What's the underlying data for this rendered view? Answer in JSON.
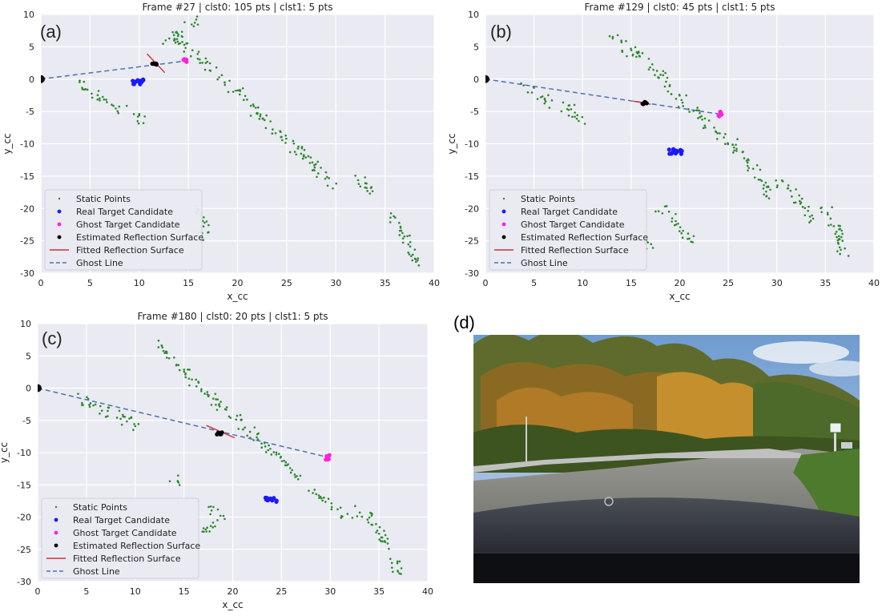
{
  "chart_data": [
    {
      "panel": "(a)",
      "type": "scatter",
      "title": "Frame #27 | clst0: 105 pts | clst1: 5 pts",
      "xlabel": "x_cc",
      "ylabel": "y_cc",
      "xlim": [
        0,
        40
      ],
      "ylim": [
        -30,
        10
      ],
      "xticks": [
        0,
        5,
        10,
        15,
        20,
        25,
        30,
        35,
        40
      ],
      "yticks": [
        10,
        5,
        0,
        -5,
        -10,
        -15,
        -20,
        -25,
        -30
      ],
      "grid": true,
      "legend_position": "lower-left",
      "legend": [
        "Static Points",
        "Real Target Candidate",
        "Ghost Target Candidate",
        "Estimated Reflection Surface",
        "Fitted Reflection Surface",
        "Ghost Line"
      ],
      "static_point_tracks": [
        [
          [
            4,
            -0.8
          ],
          [
            6,
            -3
          ],
          [
            9,
            -5
          ],
          [
            10.5,
            -6.5
          ]
        ],
        [
          [
            13,
            7
          ],
          [
            16.5,
            2.5
          ],
          [
            20,
            -2
          ],
          [
            23,
            -7
          ],
          [
            27,
            -12
          ],
          [
            30,
            -17
          ]
        ],
        [
          [
            32,
            -15
          ],
          [
            34,
            -18
          ]
        ],
        [
          [
            35.5,
            -21
          ],
          [
            37,
            -25
          ],
          [
            38,
            -28.5
          ]
        ],
        [
          [
            15.5,
            -20
          ],
          [
            17,
            -23
          ],
          [
            16,
            -25
          ]
        ],
        [
          [
            12.5,
            6
          ],
          [
            14.5,
            7
          ]
        ],
        [
          [
            15,
            8
          ],
          [
            16,
            9.5
          ]
        ]
      ],
      "real_target": [
        10,
        -0.4
      ],
      "ghost_target": [
        14.7,
        2.8
      ],
      "estimated_surface": [
        11.6,
        2.3
      ],
      "fitted_surface": [
        [
          10.8,
          3.9
        ],
        [
          12.6,
          1.0
        ]
      ],
      "ghost_line": [
        [
          0,
          0
        ],
        [
          14.7,
          2.8
        ]
      ],
      "sensor_origin": [
        0,
        0
      ]
    },
    {
      "panel": "(b)",
      "type": "scatter",
      "title": "Frame #129 | clst0: 45 pts | clst1: 5 pts",
      "xlabel": "x_cc",
      "ylabel": "y_cc",
      "xlim": [
        0,
        40
      ],
      "ylim": [
        -30,
        10
      ],
      "xticks": [
        0,
        5,
        10,
        15,
        20,
        25,
        30,
        35,
        40
      ],
      "yticks": [
        10,
        5,
        0,
        -5,
        -10,
        -15,
        -20,
        -25,
        -30
      ],
      "grid": true,
      "legend_position": "lower-left",
      "legend": [
        "Static Points",
        "Real Target Candidate",
        "Ghost Target Candidate",
        "Estimated Reflection Surface",
        "Fitted Reflection Surface",
        "Ghost Line"
      ],
      "static_point_tracks": [
        [
          [
            4,
            -1
          ],
          [
            6,
            -3
          ],
          [
            8.5,
            -4.5
          ],
          [
            10,
            -6.5
          ]
        ],
        [
          [
            13,
            6.5
          ],
          [
            17,
            2
          ],
          [
            20,
            -3
          ],
          [
            23,
            -7
          ],
          [
            27,
            -12
          ],
          [
            29,
            -18
          ]
        ],
        [
          [
            30,
            -16
          ],
          [
            32,
            -18
          ],
          [
            33.5,
            -22
          ]
        ],
        [
          [
            35,
            -20
          ],
          [
            36.5,
            -24
          ],
          [
            37,
            -28
          ]
        ],
        [
          [
            18,
            -20
          ],
          [
            20,
            -22
          ],
          [
            21,
            -25
          ]
        ],
        [
          [
            16,
            -24
          ],
          [
            17,
            -26
          ]
        ]
      ],
      "real_target": [
        19.6,
        -11.2
      ],
      "ghost_target": [
        24.1,
        -5.4
      ],
      "estimated_surface": [
        16.3,
        -3.7
      ],
      "fitted_surface": [
        [
          15.2,
          -3.4
        ],
        [
          17.0,
          -3.9
        ]
      ],
      "ghost_line": [
        [
          0,
          0
        ],
        [
          24.1,
          -5.4
        ]
      ],
      "sensor_origin": [
        0,
        0
      ]
    },
    {
      "panel": "(c)",
      "type": "scatter",
      "title": "Frame #180 | clst0: 20 pts | clst1: 5 pts",
      "xlabel": "x_cc",
      "ylabel": "y_cc",
      "xlim": [
        0,
        40
      ],
      "ylim": [
        -30,
        10
      ],
      "xticks": [
        0,
        5,
        10,
        15,
        20,
        25,
        30,
        35,
        40
      ],
      "yticks": [
        10,
        5,
        0,
        -5,
        -10,
        -15,
        -20,
        -25,
        -30
      ],
      "grid": true,
      "legend_position": "lower-left",
      "legend": [
        "Static Points",
        "Real Target Candidate",
        "Ghost Target Candidate",
        "Estimated Reflection Surface",
        "Fitted Reflection Surface",
        "Ghost Line"
      ],
      "static_point_tracks": [
        [
          [
            4,
            -1
          ],
          [
            6,
            -3
          ],
          [
            8.5,
            -4.5
          ],
          [
            10.5,
            -6.5
          ]
        ],
        [
          [
            12.5,
            7
          ],
          [
            16,
            1
          ],
          [
            19,
            -3
          ],
          [
            22,
            -7
          ],
          [
            25,
            -11
          ],
          [
            27,
            -14
          ]
        ],
        [
          [
            28,
            -16
          ],
          [
            30,
            -18
          ],
          [
            32,
            -20
          ]
        ],
        [
          [
            33,
            -19
          ],
          [
            35,
            -22
          ],
          [
            36.5,
            -26
          ],
          [
            37,
            -29
          ]
        ],
        [
          [
            17.5,
            -18
          ],
          [
            19,
            -20
          ],
          [
            17,
            -22
          ]
        ],
        [
          [
            14,
            -14
          ],
          [
            15,
            -15
          ]
        ]
      ],
      "real_target": [
        23.8,
        -17.3
      ],
      "ghost_target": [
        29.7,
        -10.7
      ],
      "estimated_surface": [
        18.6,
        -7.0
      ],
      "fitted_surface": [
        [
          17.3,
          -5.8
        ],
        [
          20.2,
          -7.7
        ]
      ],
      "ghost_line": [
        [
          0,
          0
        ],
        [
          29.7,
          -10.7
        ]
      ],
      "sensor_origin": [
        0,
        0
      ]
    }
  ],
  "photo": {
    "label": "(d)"
  },
  "colors": {
    "static": "#2a8a2a",
    "real": "#1a1aff",
    "ghost": "#ff22dd",
    "surface": "#000000",
    "fitted": "#d03030",
    "ghostline": "#4c72b0",
    "grid": "#ffffff",
    "plot_bg": "#eaeaf2"
  }
}
